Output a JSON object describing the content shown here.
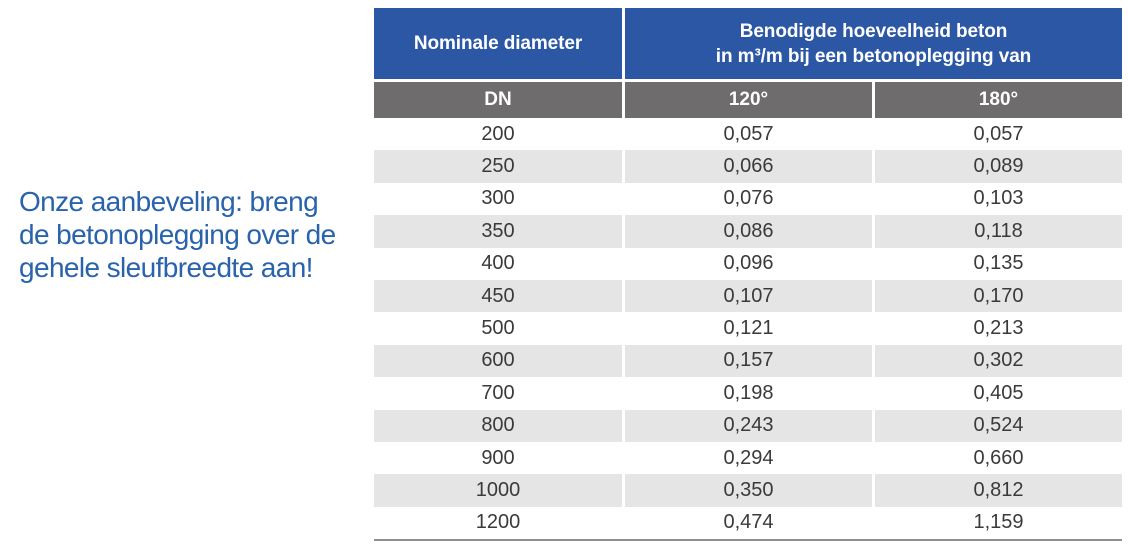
{
  "note": {
    "line1": "Onze aanbeveling: breng",
    "line2": "de betonoplegging over de",
    "line3": "gehele sleufbreedte aan!"
  },
  "table": {
    "header": {
      "diameter": "Nominale diameter",
      "concrete_line1": "Benodigde hoeveelheid beton",
      "concrete_line2": "in m³/m bij een betonoplegging van"
    },
    "subheader": {
      "dn": "DN",
      "deg120": "120°",
      "deg180": "180°"
    },
    "rows": [
      {
        "dn": "200",
        "c120": "0,057",
        "c180": "0,057"
      },
      {
        "dn": "250",
        "c120": "0,066",
        "c180": "0,089"
      },
      {
        "dn": "300",
        "c120": "0,076",
        "c180": "0,103"
      },
      {
        "dn": "350",
        "c120": "0,086",
        "c180": "0,118"
      },
      {
        "dn": "400",
        "c120": "0,096",
        "c180": "0,135"
      },
      {
        "dn": "450",
        "c120": "0,107",
        "c180": "0,170"
      },
      {
        "dn": "500",
        "c120": "0,121",
        "c180": "0,213"
      },
      {
        "dn": "600",
        "c120": "0,157",
        "c180": "0,302"
      },
      {
        "dn": "700",
        "c120": "0,198",
        "c180": "0,405"
      },
      {
        "dn": "800",
        "c120": "0,243",
        "c180": "0,524"
      },
      {
        "dn": "900",
        "c120": "0,294",
        "c180": "0,660"
      },
      {
        "dn": "1000",
        "c120": "0,350",
        "c180": "0,812"
      },
      {
        "dn": "1200",
        "c120": "0,474",
        "c180": "1,159"
      }
    ]
  },
  "colors": {
    "header_blue": "#2B57A5",
    "subheader_gray": "#6F6C6D",
    "alt_row_gray": "#E6E5E6",
    "note_blue": "#2963AC",
    "data_text": "#3A3A3A",
    "bottom_border": "#8F8F8F"
  }
}
